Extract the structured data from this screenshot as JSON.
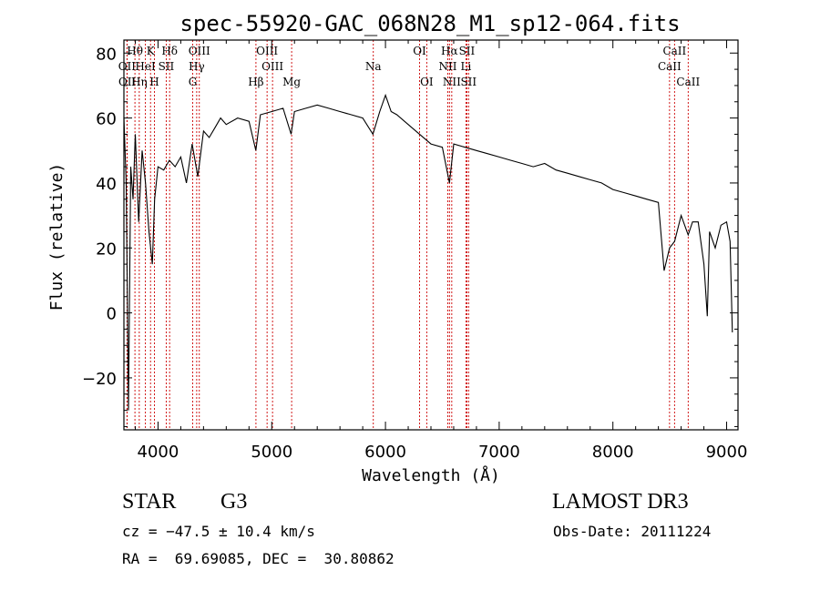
{
  "chart_data": {
    "type": "line",
    "title": "spec-55920-GAC_068N28_M1_sp12-064.fits",
    "xlabel": "Wavelength (Å)",
    "ylabel": "Flux (relative)",
    "xlim": [
      3700,
      9100
    ],
    "ylim": [
      -36,
      84
    ],
    "xticks": [
      4000,
      5000,
      6000,
      7000,
      8000,
      9000
    ],
    "yticks": [
      -20,
      0,
      20,
      40,
      60,
      80
    ],
    "series": [
      {
        "name": "flux",
        "color": "#000000",
        "x": [
          3700,
          3720,
          3740,
          3760,
          3780,
          3800,
          3830,
          3860,
          3890,
          3920,
          3950,
          3970,
          4000,
          4050,
          4100,
          4150,
          4200,
          4250,
          4300,
          4350,
          4400,
          4450,
          4500,
          4550,
          4600,
          4700,
          4800,
          4860,
          4900,
          5000,
          5100,
          5170,
          5200,
          5300,
          5400,
          5500,
          5600,
          5700,
          5800,
          5890,
          5950,
          6000,
          6050,
          6100,
          6200,
          6300,
          6400,
          6500,
          6563,
          6600,
          6700,
          6800,
          6900,
          7000,
          7100,
          7200,
          7300,
          7400,
          7500,
          7600,
          7700,
          7800,
          7900,
          8000,
          8100,
          8200,
          8300,
          8400,
          8450,
          8498,
          8542,
          8600,
          8662,
          8700,
          8750,
          8800,
          8830,
          8850,
          8900,
          8950,
          9000,
          9030,
          9050
        ],
        "y": [
          60,
          40,
          -30,
          45,
          35,
          55,
          28,
          50,
          40,
          25,
          15,
          35,
          45,
          44,
          47,
          45,
          48,
          40,
          52,
          42,
          56,
          54,
          57,
          60,
          58,
          60,
          59,
          50,
          61,
          62,
          63,
          55,
          62,
          63,
          64,
          63,
          62,
          61,
          60,
          55,
          62,
          67,
          62,
          61,
          58,
          55,
          52,
          51,
          40,
          52,
          51,
          50,
          49,
          48,
          47,
          46,
          45,
          46,
          44,
          43,
          42,
          41,
          40,
          38,
          37,
          36,
          35,
          34,
          13,
          20,
          22,
          30,
          24,
          28,
          28,
          15,
          -1,
          25,
          20,
          27,
          28,
          22,
          -6
        ]
      }
    ],
    "lines": [
      {
        "label": "Hθ",
        "wave": 3797,
        "row": 0
      },
      {
        "label": "K",
        "wave": 3934,
        "row": 0
      },
      {
        "label": "Hδ",
        "wave": 4102,
        "row": 0
      },
      {
        "label": "OIII",
        "wave": 4363,
        "row": 0
      },
      {
        "label": "OIII",
        "wave": 4959,
        "row": 0
      },
      {
        "label": "OI",
        "wave": 6300,
        "row": 0
      },
      {
        "label": "Hα",
        "wave": 6563,
        "row": 0
      },
      {
        "label": "SII",
        "wave": 6716,
        "row": 0
      },
      {
        "label": "CaII",
        "wave": 8542,
        "row": 0
      },
      {
        "label": "OII",
        "wave": 3727,
        "row": 1
      },
      {
        "label": "HeI",
        "wave": 3889,
        "row": 1
      },
      {
        "label": "SII",
        "wave": 4072,
        "row": 1
      },
      {
        "label": "Hγ",
        "wave": 4340,
        "row": 1
      },
      {
        "label": "OIII",
        "wave": 5007,
        "row": 1
      },
      {
        "label": "Na",
        "wave": 5893,
        "row": 1
      },
      {
        "label": "NII",
        "wave": 6548,
        "row": 1
      },
      {
        "label": "Li",
        "wave": 6708,
        "row": 1
      },
      {
        "label": "CaII",
        "wave": 8498,
        "row": 1
      },
      {
        "label": "OII",
        "wave": 3729,
        "row": 2
      },
      {
        "label": "Hη",
        "wave": 3835,
        "row": 2
      },
      {
        "label": "H",
        "wave": 3968,
        "row": 2
      },
      {
        "label": "G",
        "wave": 4305,
        "row": 2
      },
      {
        "label": "Hβ",
        "wave": 4861,
        "row": 2
      },
      {
        "label": "Mg",
        "wave": 5175,
        "row": 2
      },
      {
        "label": "OI",
        "wave": 6363,
        "row": 2
      },
      {
        "label": "NII",
        "wave": 6583,
        "row": 2
      },
      {
        "label": "SII",
        "wave": 6731,
        "row": 2
      },
      {
        "label": "CaII",
        "wave": 8662,
        "row": 2
      }
    ]
  },
  "info": {
    "class": "STAR",
    "subclass": "G3",
    "survey": "LAMOST DR3",
    "cz": "cz = −47.5 ± 10.4 km/s",
    "obs_date": "Obs-Date: 20111224",
    "coords": "RA =  69.69085, DEC =  30.80862"
  }
}
